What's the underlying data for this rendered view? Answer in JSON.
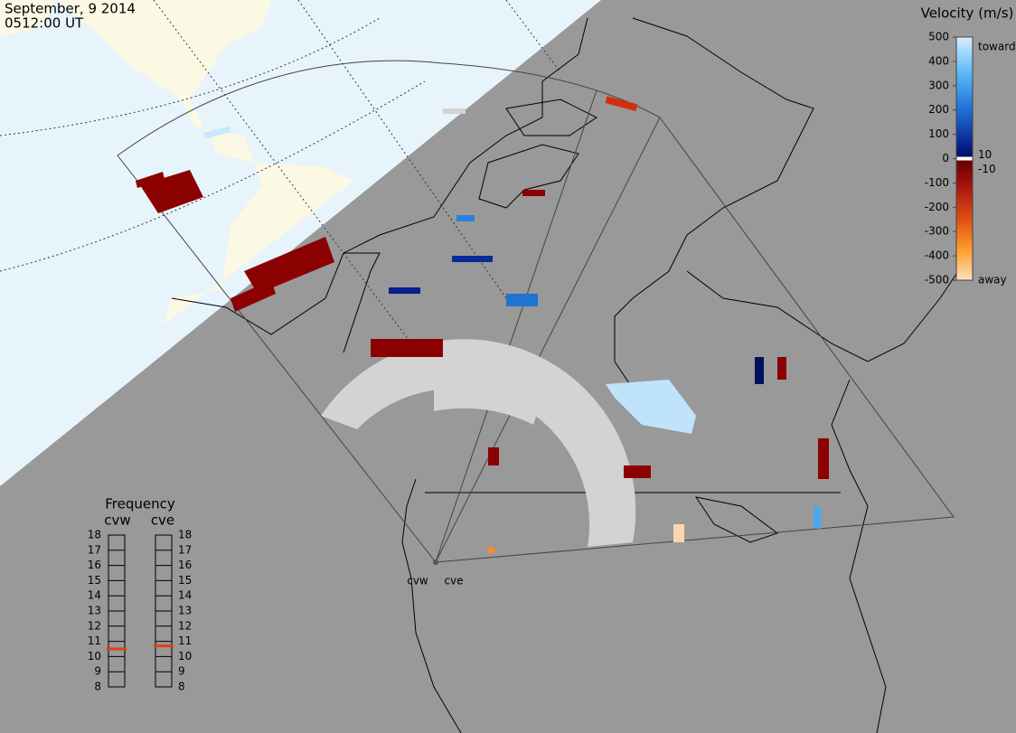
{
  "header": {
    "date": "September, 9 2014",
    "time": "0512:00 UT"
  },
  "velocity_scale": {
    "title": "Velocity (m/s)",
    "ylim": [
      -500,
      500
    ],
    "ticks": [
      500,
      400,
      300,
      200,
      100,
      0,
      -100,
      -200,
      -300,
      -400,
      -500
    ],
    "toward": "toward",
    "away": "away",
    "inner_labels": [
      10,
      -10
    ]
  },
  "frequency": {
    "title": "Frequency",
    "ylim": [
      8,
      18
    ],
    "ticks": [
      18,
      17,
      16,
      15,
      14,
      13,
      12,
      11,
      10,
      9,
      8
    ],
    "radars": [
      {
        "name": "cvw",
        "value": 10.5
      },
      {
        "name": "cve",
        "value": 10.7
      }
    ]
  },
  "radar_labels": [
    "cvw",
    "cve"
  ]
}
